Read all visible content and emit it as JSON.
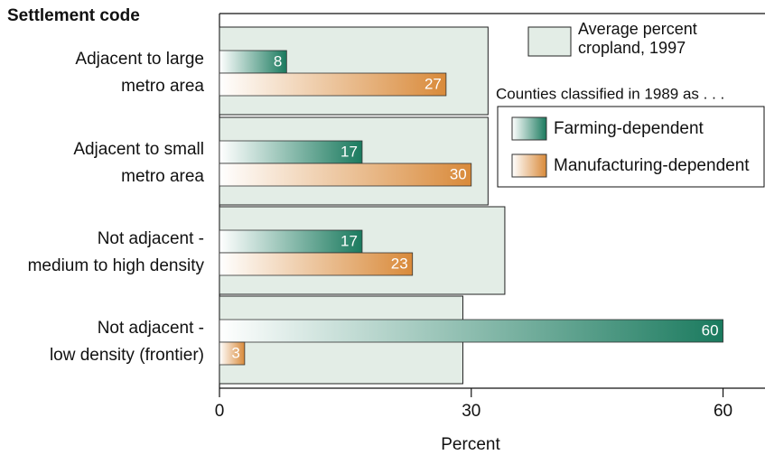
{
  "chart_data": {
    "type": "bar",
    "orientation": "horizontal",
    "y_label": "Settlement code",
    "x_label": "Percent",
    "categories": [
      [
        "Adjacent to large",
        "metro area"
      ],
      [
        "Adjacent to small",
        "metro area"
      ],
      [
        "Not adjacent -",
        "medium to high density"
      ],
      [
        "Not adjacent -",
        "low density (frontier)"
      ]
    ],
    "background_series": {
      "name": "Average percent cropland, 1997",
      "color": "#e3ede6",
      "values": [
        32,
        32,
        34,
        29
      ]
    },
    "legend_title": "Counties classified in 1989 as . . .",
    "series": [
      {
        "name": "Farming-dependent",
        "color": "#1a7a5e",
        "values": [
          8,
          17,
          17,
          60
        ]
      },
      {
        "name": "Manufacturing-dependent",
        "color": "#d98a3a",
        "values": [
          27,
          30,
          23,
          3
        ]
      }
    ],
    "xlim": [
      0,
      65
    ],
    "xticks": [
      0,
      30,
      60
    ],
    "legend": "upper right"
  }
}
